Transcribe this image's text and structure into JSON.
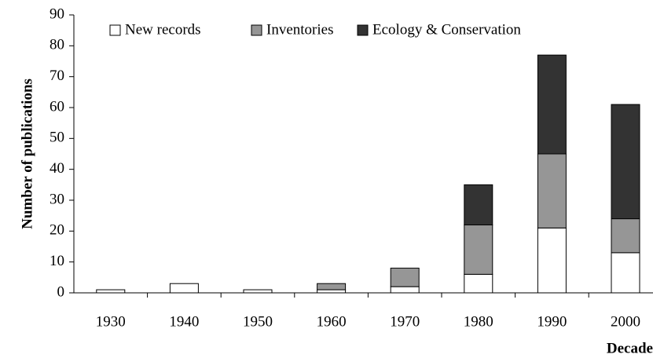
{
  "chart_data": {
    "type": "stacked_bar",
    "x_label": "Decade",
    "y_label": "Number of publications",
    "categories": [
      "1930",
      "1940",
      "1950",
      "1960",
      "1970",
      "1980",
      "1990",
      "2000"
    ],
    "series": [
      {
        "name": "New records",
        "color": "#ffffff",
        "values": [
          1,
          3,
          1,
          1,
          2,
          6,
          21,
          13
        ]
      },
      {
        "name": "Inventories",
        "color": "#969696",
        "values": [
          0,
          0,
          0,
          2,
          6,
          16,
          24,
          11
        ]
      },
      {
        "name": "Ecology & Conservation",
        "color": "#333333",
        "values": [
          0,
          0,
          0,
          0,
          0,
          13,
          32,
          37
        ]
      }
    ],
    "ylim": [
      0,
      90
    ],
    "yticks": [
      0,
      10,
      20,
      30,
      40,
      50,
      60,
      70,
      80,
      90
    ],
    "legend": "top"
  }
}
